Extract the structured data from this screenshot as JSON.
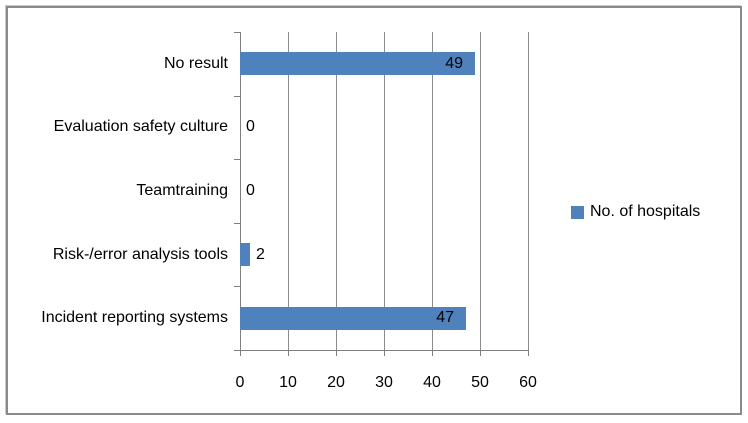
{
  "chart_data": {
    "type": "bar",
    "orientation": "horizontal",
    "title": "",
    "xlabel": "",
    "ylabel": "",
    "categories": [
      "No result",
      "Evaluation safety culture",
      "Teamtraining",
      "Risk-/error analysis tools",
      "Incident reporting systems"
    ],
    "series": [
      {
        "name": "No. of hospitals",
        "values": [
          49,
          0,
          0,
          2,
          47
        ]
      }
    ],
    "data_labels": [
      "49",
      "0",
      "0",
      "2",
      "47"
    ],
    "xlim": [
      0,
      60
    ],
    "xticks": [
      0,
      10,
      20,
      30,
      40,
      50,
      60
    ],
    "grid": "vertical-major-on",
    "legend_position": "right",
    "colors": {
      "bar": "#4f81bd",
      "axis": "#7f7f7f",
      "gridline": "#8c8c8c",
      "text": "#000000",
      "frame_border": "#8a8a8a"
    }
  }
}
